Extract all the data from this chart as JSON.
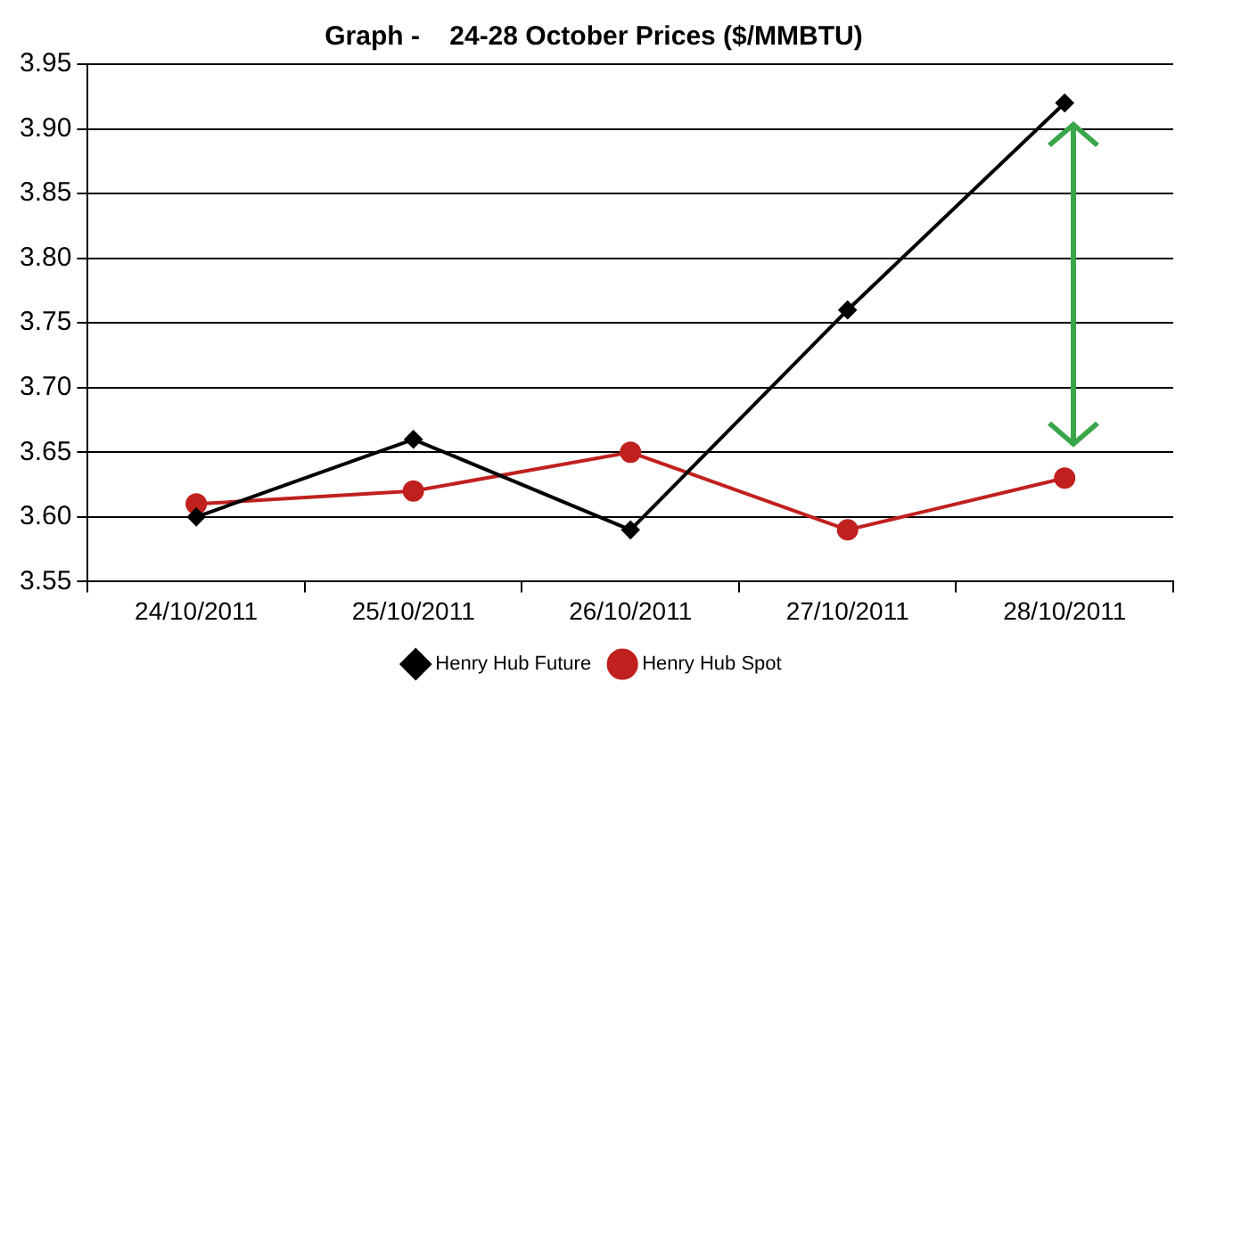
{
  "chart_data": {
    "type": "line",
    "title": "Graph -    24-28 October Prices ($/MMBTU)",
    "categories": [
      "24/10/2011",
      "25/10/2011",
      "26/10/2011",
      "27/10/2011",
      "28/10/2011"
    ],
    "series": [
      {
        "name": "Henry Hub Future",
        "color": "#000000",
        "marker": "diamond",
        "values": [
          3.6,
          3.66,
          3.59,
          3.76,
          3.92
        ]
      },
      {
        "name": "Henry Hub Spot",
        "color": "#c0201e",
        "marker": "circle",
        "values": [
          3.61,
          3.62,
          3.65,
          3.59,
          3.63
        ]
      }
    ],
    "ylim": [
      3.55,
      3.95
    ],
    "yticks": [
      3.55,
      {
        "value": 3.6,
        "label": "3.60"
      },
      3.65,
      {
        "value": 3.7,
        "label": "3.70"
      },
      3.75,
      {
        "value": 3.8,
        "label": "3.80"
      },
      3.85,
      {
        "value": 3.9,
        "label": "3.90"
      },
      3.95
    ],
    "grid": "y",
    "legend": "bottom"
  }
}
